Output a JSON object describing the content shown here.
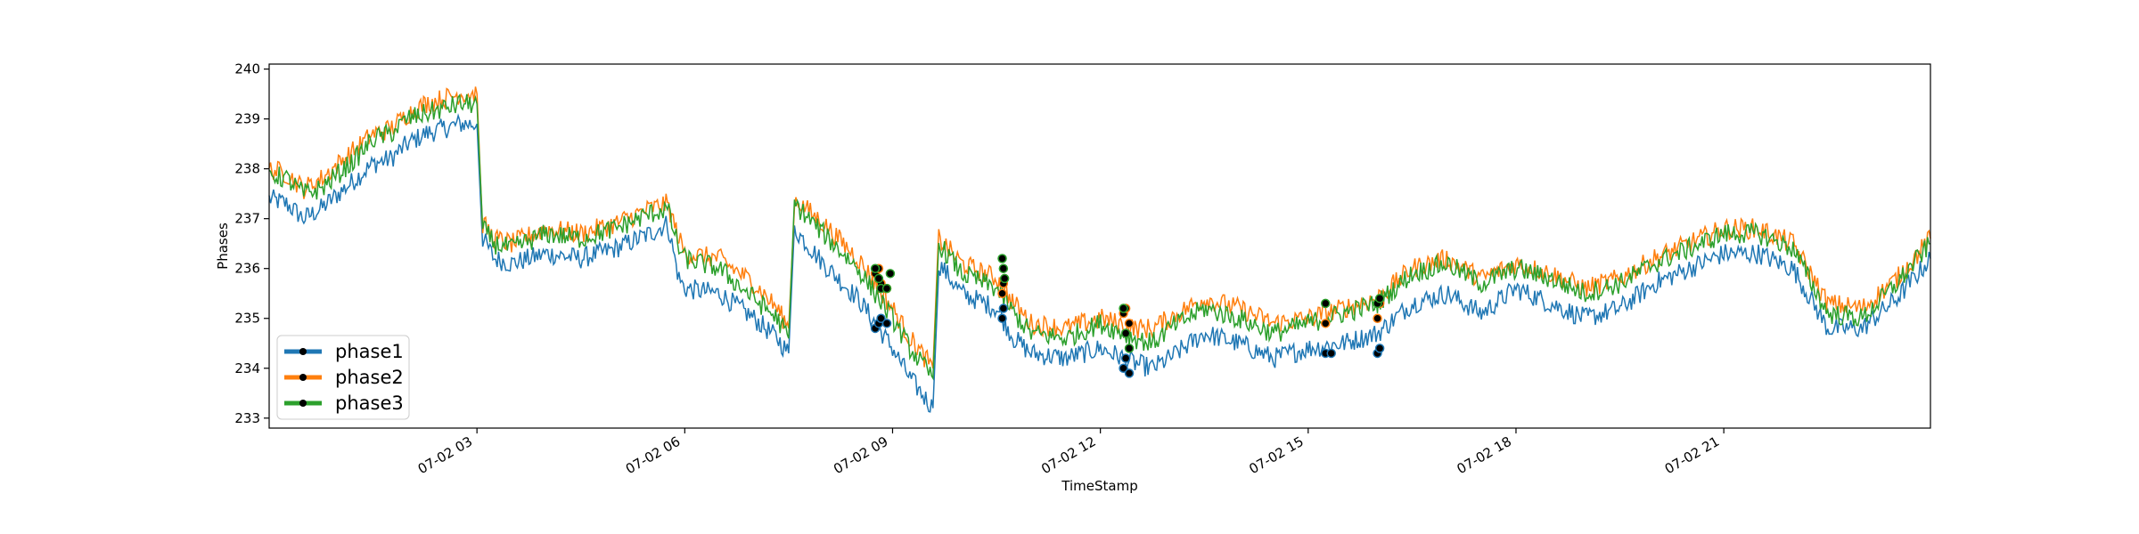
{
  "chart_data": {
    "type": "line",
    "title": "",
    "xlabel": "TimeStamp",
    "ylabel": "Phases",
    "x_range": [
      "07-02 00:00",
      "07-02 23:59"
    ],
    "ylim": [
      232.8,
      240.1
    ],
    "yticks": [
      233,
      234,
      235,
      236,
      237,
      238,
      239,
      240
    ],
    "xticks": [
      {
        "t": "07-02 03:00",
        "label": "07-02 03"
      },
      {
        "t": "07-02 06:00",
        "label": "07-02 06"
      },
      {
        "t": "07-02 09:00",
        "label": "07-02 09"
      },
      {
        "t": "07-02 12:00",
        "label": "07-02 12"
      },
      {
        "t": "07-02 15:00",
        "label": "07-02 15"
      },
      {
        "t": "07-02 18:00",
        "label": "07-02 18"
      },
      {
        "t": "07-02 21:00",
        "label": "07-02 21"
      }
    ],
    "grid": false,
    "legend": "lower-left",
    "series": [
      {
        "name": "phase1",
        "color": "#1f77b4",
        "x": [
          "00:00",
          "00:15",
          "00:30",
          "00:45",
          "01:00",
          "01:15",
          "01:30",
          "01:45",
          "02:00",
          "02:15",
          "02:30",
          "02:45",
          "03:00",
          "03:05",
          "03:15",
          "03:30",
          "04:00",
          "04:30",
          "05:00",
          "05:30",
          "05:45",
          "05:55",
          "06:00",
          "06:30",
          "07:00",
          "07:20",
          "07:30",
          "07:35",
          "08:00",
          "08:30",
          "08:45",
          "09:00",
          "09:15",
          "09:35",
          "09:40",
          "10:00",
          "10:30",
          "10:45",
          "11:00",
          "11:30",
          "12:00",
          "12:30",
          "12:45",
          "13:00",
          "13:30",
          "14:00",
          "14:30",
          "15:00",
          "15:30",
          "16:00",
          "16:30",
          "17:00",
          "17:30",
          "18:00",
          "18:30",
          "19:00",
          "19:30",
          "20:00",
          "20:30",
          "21:00",
          "21:30",
          "22:00",
          "22:30",
          "23:00",
          "23:30",
          "23:59"
        ],
        "y": [
          237.4,
          237.3,
          237.0,
          237.2,
          237.5,
          237.8,
          238.1,
          238.2,
          238.5,
          238.7,
          238.8,
          238.9,
          238.9,
          236.6,
          236.2,
          236.1,
          236.3,
          236.2,
          236.4,
          236.7,
          236.9,
          235.8,
          235.6,
          235.5,
          235.0,
          234.6,
          234.3,
          236.8,
          236.1,
          235.4,
          234.9,
          234.4,
          233.8,
          233.2,
          236.1,
          235.5,
          235.2,
          234.6,
          234.3,
          234.2,
          234.4,
          234.1,
          234.0,
          234.2,
          234.7,
          234.5,
          234.2,
          234.4,
          234.5,
          234.7,
          235.3,
          235.5,
          235.1,
          235.6,
          235.3,
          235.0,
          235.2,
          235.7,
          236.0,
          236.3,
          236.3,
          236.0,
          234.8,
          234.8,
          235.4,
          236.2
        ]
      },
      {
        "name": "phase2",
        "color": "#ff7f0e",
        "x": [
          "00:00",
          "00:15",
          "00:30",
          "00:45",
          "01:00",
          "01:15",
          "01:30",
          "01:45",
          "02:00",
          "02:15",
          "02:30",
          "02:45",
          "03:00",
          "03:05",
          "03:15",
          "03:30",
          "04:00",
          "04:30",
          "05:00",
          "05:30",
          "05:45",
          "05:55",
          "06:00",
          "06:30",
          "07:00",
          "07:20",
          "07:30",
          "07:35",
          "08:00",
          "08:30",
          "08:45",
          "09:00",
          "09:15",
          "09:35",
          "09:40",
          "10:00",
          "10:30",
          "10:45",
          "11:00",
          "11:30",
          "12:00",
          "12:30",
          "12:45",
          "13:00",
          "13:30",
          "14:00",
          "14:30",
          "15:00",
          "15:30",
          "16:00",
          "16:30",
          "17:00",
          "17:30",
          "18:00",
          "18:30",
          "19:00",
          "19:30",
          "20:00",
          "20:30",
          "21:00",
          "21:30",
          "22:00",
          "22:30",
          "23:00",
          "23:30",
          "23:59"
        ],
        "y": [
          238.0,
          237.9,
          237.6,
          237.8,
          238.1,
          238.4,
          238.7,
          238.8,
          239.1,
          239.3,
          239.4,
          239.5,
          239.5,
          236.9,
          236.6,
          236.5,
          236.8,
          236.7,
          236.9,
          237.2,
          237.3,
          236.6,
          236.3,
          236.2,
          235.7,
          235.2,
          234.8,
          237.4,
          236.9,
          236.2,
          235.7,
          235.2,
          234.6,
          234.0,
          236.6,
          236.1,
          235.8,
          235.3,
          234.9,
          234.8,
          235.0,
          234.8,
          234.8,
          235.0,
          235.4,
          235.2,
          234.9,
          235.0,
          235.2,
          235.4,
          236.0,
          236.2,
          235.8,
          236.1,
          235.9,
          235.6,
          235.8,
          236.2,
          236.5,
          236.8,
          236.8,
          236.5,
          235.3,
          235.2,
          235.8,
          236.6
        ]
      },
      {
        "name": "phase3",
        "color": "#2ca02c",
        "x": [
          "00:00",
          "00:15",
          "00:30",
          "00:45",
          "01:00",
          "01:15",
          "01:30",
          "01:45",
          "02:00",
          "02:15",
          "02:30",
          "02:45",
          "03:00",
          "03:05",
          "03:15",
          "03:30",
          "04:00",
          "04:30",
          "05:00",
          "05:30",
          "05:45",
          "05:55",
          "06:00",
          "06:30",
          "07:00",
          "07:20",
          "07:30",
          "07:35",
          "08:00",
          "08:30",
          "08:45",
          "09:00",
          "09:15",
          "09:35",
          "09:40",
          "10:00",
          "10:30",
          "10:45",
          "11:00",
          "11:30",
          "12:00",
          "12:30",
          "12:45",
          "13:00",
          "13:30",
          "14:00",
          "14:30",
          "15:00",
          "15:30",
          "16:00",
          "16:30",
          "17:00",
          "17:30",
          "18:00",
          "18:30",
          "19:00",
          "19:30",
          "20:00",
          "20:30",
          "21:00",
          "21:30",
          "22:00",
          "22:30",
          "23:00",
          "23:30",
          "23:59"
        ],
        "y": [
          237.9,
          237.8,
          237.5,
          237.6,
          237.9,
          238.2,
          238.6,
          238.7,
          239.0,
          239.1,
          239.2,
          239.3,
          239.3,
          236.8,
          236.5,
          236.4,
          236.7,
          236.6,
          236.8,
          237.1,
          237.2,
          236.4,
          236.2,
          236.0,
          235.4,
          235.0,
          234.6,
          237.3,
          236.7,
          236.0,
          235.5,
          235.0,
          234.4,
          233.8,
          236.5,
          235.9,
          235.6,
          235.1,
          234.7,
          234.6,
          234.9,
          234.6,
          234.5,
          234.8,
          235.2,
          235.0,
          234.7,
          234.9,
          235.1,
          235.3,
          235.9,
          236.1,
          235.7,
          236.0,
          235.8,
          235.5,
          235.7,
          236.1,
          236.4,
          236.7,
          236.7,
          236.4,
          235.1,
          235.0,
          235.7,
          236.5
        ]
      }
    ],
    "markers": [
      {
        "series": "phase1",
        "x": [
          "08:45",
          "08:48",
          "08:50",
          "08:55",
          "10:35",
          "10:36",
          "12:20",
          "12:22",
          "12:25",
          "15:15",
          "15:20",
          "16:00",
          "16:02"
        ],
        "y": [
          234.8,
          234.9,
          235.0,
          234.9,
          235.0,
          235.2,
          234.0,
          234.2,
          233.9,
          234.3,
          234.3,
          234.3,
          234.4
        ]
      },
      {
        "series": "phase2",
        "x": [
          "08:45",
          "08:48",
          "08:50",
          "08:55",
          "10:35",
          "10:36",
          "12:20",
          "12:22",
          "12:25",
          "15:15",
          "16:00",
          "16:02"
        ],
        "y": [
          235.9,
          236.0,
          235.7,
          235.6,
          235.5,
          235.7,
          235.1,
          235.2,
          234.9,
          234.9,
          235.0,
          235.3
        ]
      },
      {
        "series": "phase3",
        "x": [
          "08:45",
          "08:48",
          "08:50",
          "08:55",
          "08:58",
          "10:35",
          "10:36",
          "10:37",
          "12:20",
          "12:22",
          "12:25",
          "15:15",
          "16:00",
          "16:02"
        ],
        "y": [
          236.0,
          235.8,
          235.6,
          235.6,
          235.9,
          236.2,
          236.0,
          235.8,
          235.2,
          234.7,
          234.4,
          235.3,
          235.3,
          235.4
        ]
      }
    ]
  }
}
